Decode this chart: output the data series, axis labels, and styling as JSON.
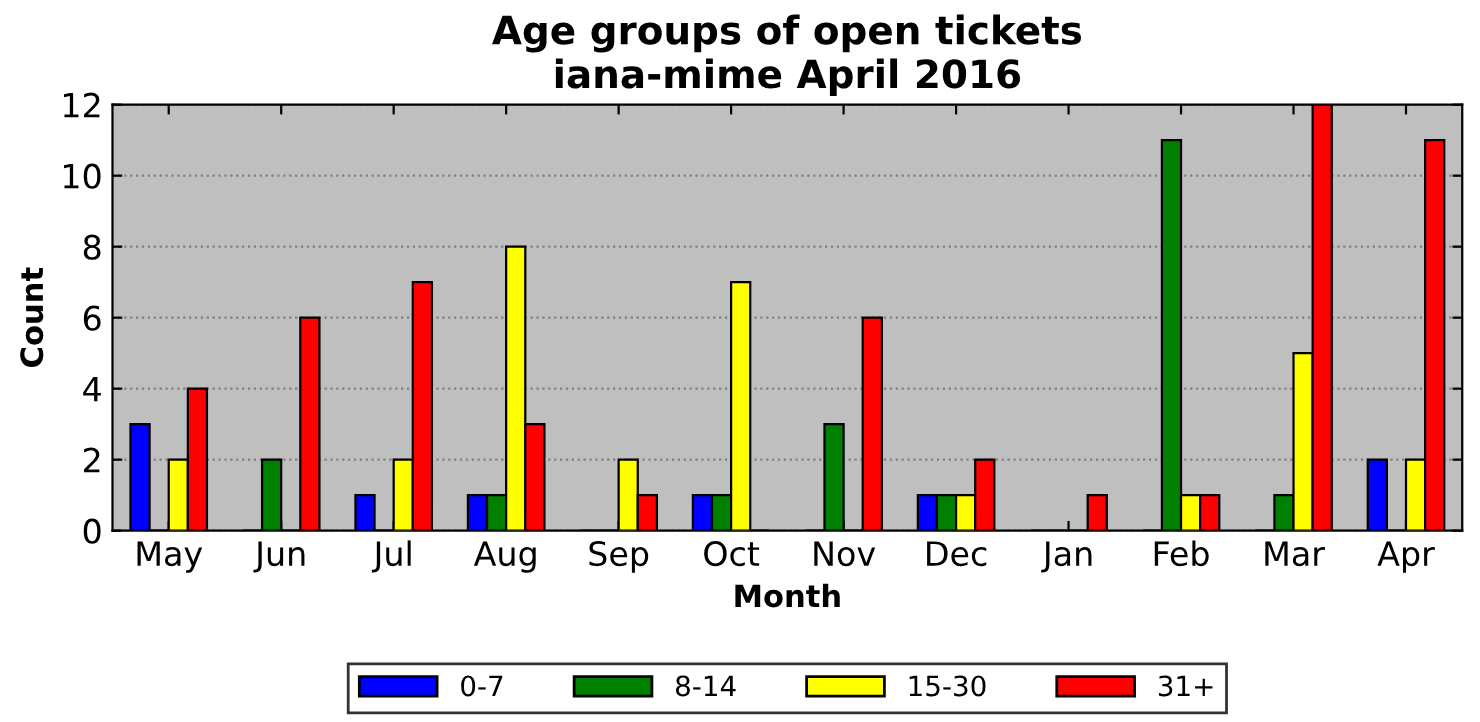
{
  "chart_data": {
    "type": "bar",
    "title": "Age groups of open tickets\niana-mime April 2016",
    "xlabel": "Month",
    "ylabel": "Count",
    "categories": [
      "May",
      "Jun",
      "Jul",
      "Aug",
      "Sep",
      "Oct",
      "Nov",
      "Dec",
      "Jan",
      "Feb",
      "Mar",
      "Apr"
    ],
    "series": [
      {
        "name": "0-7",
        "color": "#0000ff",
        "values": [
          3,
          0,
          1,
          1,
          0,
          1,
          0,
          1,
          0,
          0,
          0,
          2
        ]
      },
      {
        "name": "8-14",
        "color": "#008000",
        "values": [
          0,
          2,
          0,
          1,
          0,
          1,
          3,
          1,
          0,
          11,
          1,
          0
        ]
      },
      {
        "name": "15-30",
        "color": "#ffff00",
        "values": [
          2,
          0,
          2,
          8,
          2,
          7,
          0,
          1,
          0,
          1,
          5,
          2
        ]
      },
      {
        "name": "31+",
        "color": "#ff0000",
        "values": [
          4,
          6,
          7,
          3,
          1,
          0,
          6,
          2,
          1,
          1,
          12,
          11
        ]
      }
    ],
    "ylim": [
      0,
      12
    ],
    "yticks": [
      0,
      2,
      4,
      6,
      8,
      10,
      12
    ],
    "grid": "y",
    "legend": "bottom"
  }
}
